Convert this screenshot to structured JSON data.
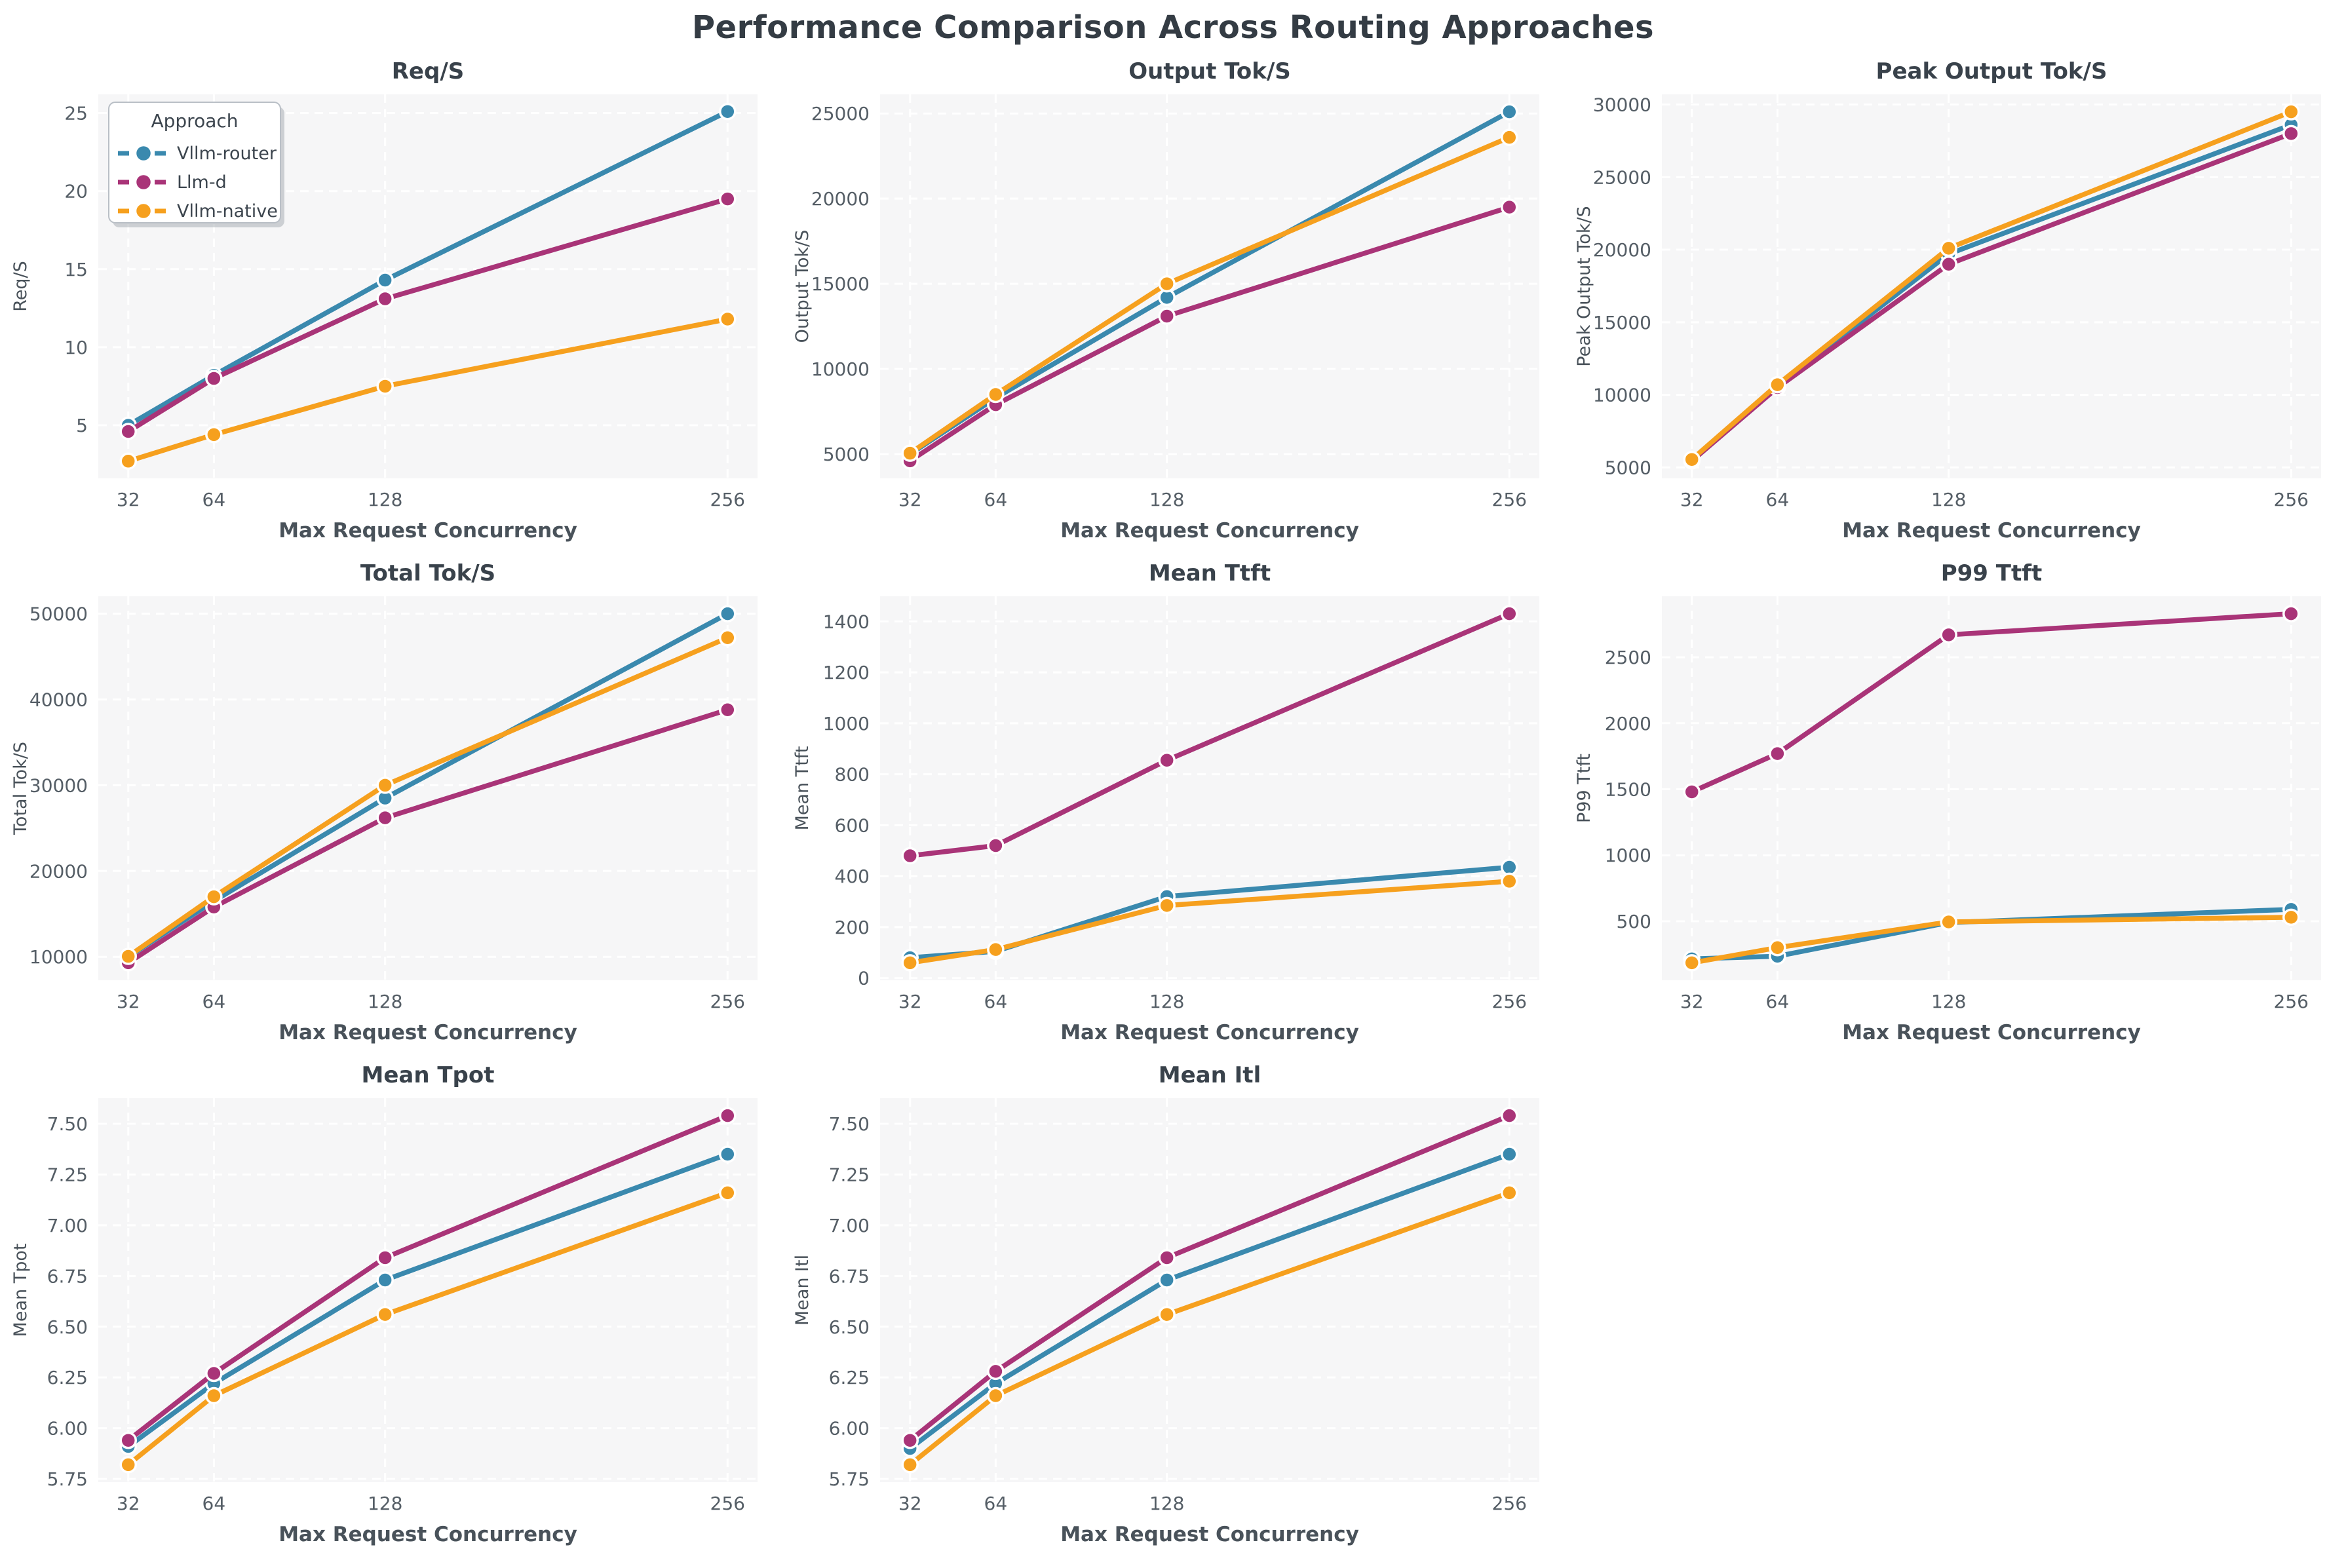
{
  "title": "Performance Comparison Across Routing Approaches",
  "legend": {
    "title": "Approach",
    "entries": [
      "Vllm-router",
      "Llm-d",
      "Vllm-native"
    ],
    "position": "upper-left",
    "shown_on_chart": "Req/S"
  },
  "colors": {
    "Vllm-router": "#3a89ae",
    "Llm-d": "#a93478",
    "Vllm-native": "#f6a01e",
    "plot_background": "#f6f6f7",
    "grid_line": "#ffffff",
    "title_text": "#343c44",
    "subtitle_text": "#39424b",
    "tick_text": "#555e66",
    "axis_label_text": "#49525a",
    "marker_edge": "#ffffff"
  },
  "chart_data": [
    {
      "type": "line",
      "title": "Req/S",
      "xlabel": "Max Request Concurrency",
      "ylabel": "Req/S",
      "x": [
        32,
        64,
        128,
        256
      ],
      "xtick_labels": [
        "32",
        "64",
        "128",
        "256"
      ],
      "ytick_labels": [
        "5",
        "10",
        "15",
        "20",
        "25"
      ],
      "xlim": [
        20.8,
        267.2
      ],
      "ylim": [
        1.6,
        26.2
      ],
      "grid": true,
      "show_legend": true,
      "series": [
        {
          "name": "Vllm-router",
          "values": [
            5.0,
            8.2,
            14.3,
            25.1
          ]
        },
        {
          "name": "Llm-d",
          "values": [
            4.6,
            8.0,
            13.1,
            19.5
          ]
        },
        {
          "name": "Vllm-native",
          "values": [
            2.7,
            4.4,
            7.5,
            11.8
          ]
        }
      ]
    },
    {
      "type": "line",
      "title": "Output Tok/S",
      "xlabel": "Max Request Concurrency",
      "ylabel": "Output Tok/S",
      "x": [
        32,
        64,
        128,
        256
      ],
      "xtick_labels": [
        "32",
        "64",
        "128",
        "256"
      ],
      "ytick_labels": [
        "5000",
        "10000",
        "15000",
        "20000",
        "25000"
      ],
      "xlim": [
        20.8,
        267.2
      ],
      "ylim": [
        3575,
        26125
      ],
      "grid": true,
      "show_legend": false,
      "series": [
        {
          "name": "Vllm-router",
          "values": [
            5000,
            8300,
            14200,
            25100
          ]
        },
        {
          "name": "Llm-d",
          "values": [
            4600,
            7900,
            13100,
            19500
          ]
        },
        {
          "name": "Vllm-native",
          "values": [
            5050,
            8500,
            15000,
            23600
          ]
        }
      ]
    },
    {
      "type": "line",
      "title": "Peak Output Tok/S",
      "xlabel": "Max Request Concurrency",
      "ylabel": "Peak Output Tok/S",
      "x": [
        32,
        64,
        128,
        256
      ],
      "xtick_labels": [
        "32",
        "64",
        "128",
        "256"
      ],
      "ytick_labels": [
        "5000",
        "10000",
        "15000",
        "20000",
        "25000",
        "30000"
      ],
      "xlim": [
        20.8,
        267.2
      ],
      "ylim": [
        4250,
        30700
      ],
      "grid": true,
      "show_legend": false,
      "series": [
        {
          "name": "Vllm-router",
          "values": [
            5500,
            10600,
            19700,
            28600
          ]
        },
        {
          "name": "Llm-d",
          "values": [
            5450,
            10500,
            19000,
            28000
          ]
        },
        {
          "name": "Vllm-native",
          "values": [
            5550,
            10700,
            20100,
            29500
          ]
        }
      ]
    },
    {
      "type": "line",
      "title": "Total Tok/S",
      "xlabel": "Max Request Concurrency",
      "ylabel": "Total Tok/S",
      "x": [
        32,
        64,
        128,
        256
      ],
      "xtick_labels": [
        "32",
        "64",
        "128",
        "256"
      ],
      "ytick_labels": [
        "10000",
        "20000",
        "30000",
        "40000",
        "50000"
      ],
      "xlim": [
        20.8,
        267.2
      ],
      "ylim": [
        7265,
        52035
      ],
      "grid": true,
      "show_legend": false,
      "series": [
        {
          "name": "Vllm-router",
          "values": [
            10000,
            16500,
            28500,
            50000
          ]
        },
        {
          "name": "Llm-d",
          "values": [
            9300,
            15800,
            26200,
            38800
          ]
        },
        {
          "name": "Vllm-native",
          "values": [
            10050,
            17000,
            30000,
            47200
          ]
        }
      ]
    },
    {
      "type": "line",
      "title": "Mean Ttft",
      "xlabel": "Max Request Concurrency",
      "ylabel": "Mean Ttft",
      "x": [
        32,
        64,
        128,
        256
      ],
      "xtick_labels": [
        "32",
        "64",
        "128",
        "256"
      ],
      "ytick_labels": [
        "0",
        "200",
        "400",
        "600",
        "800",
        "1000",
        "1200",
        "1400"
      ],
      "xlim": [
        20.8,
        267.2
      ],
      "ylim": [
        -8.5,
        1498.5
      ],
      "grid": true,
      "show_legend": false,
      "series": [
        {
          "name": "Vllm-router",
          "values": [
            80,
            105,
            320,
            435
          ]
        },
        {
          "name": "Llm-d",
          "values": [
            480,
            520,
            855,
            1430
          ]
        },
        {
          "name": "Vllm-native",
          "values": [
            60,
            112,
            285,
            380
          ]
        }
      ]
    },
    {
      "type": "line",
      "title": "P99 Ttft",
      "xlabel": "Max Request Concurrency",
      "ylabel": "P99 Ttft",
      "x": [
        32,
        64,
        128,
        256
      ],
      "xtick_labels": [
        "32",
        "64",
        "128",
        "256"
      ],
      "ytick_labels": [
        "500",
        "1000",
        "1500",
        "2000",
        "2500"
      ],
      "xlim": [
        20.8,
        267.2
      ],
      "ylim": [
        53,
        2962
      ],
      "grid": true,
      "show_legend": false,
      "series": [
        {
          "name": "Vllm-router",
          "values": [
            215,
            235,
            490,
            590
          ]
        },
        {
          "name": "Llm-d",
          "values": [
            1480,
            1770,
            2670,
            2830
          ]
        },
        {
          "name": "Vllm-native",
          "values": [
            185,
            300,
            495,
            530
          ]
        }
      ]
    },
    {
      "type": "line",
      "title": "Mean Tpot",
      "xlabel": "Max Request Concurrency",
      "ylabel": "Mean Tpot",
      "x": [
        32,
        64,
        128,
        256
      ],
      "xtick_labels": [
        "32",
        "64",
        "128",
        "256"
      ],
      "ytick_labels": [
        "5.75",
        "6.00",
        "6.25",
        "6.50",
        "6.75",
        "7.00",
        "7.25",
        "7.50"
      ],
      "xlim": [
        20.8,
        267.2
      ],
      "ylim": [
        5.734,
        7.626
      ],
      "grid": true,
      "show_legend": false,
      "series": [
        {
          "name": "Vllm-router",
          "values": [
            5.91,
            6.22,
            6.73,
            7.35
          ]
        },
        {
          "name": "Llm-d",
          "values": [
            5.94,
            6.27,
            6.84,
            7.54
          ]
        },
        {
          "name": "Vllm-native",
          "values": [
            5.82,
            6.16,
            6.56,
            7.16
          ]
        }
      ]
    },
    {
      "type": "line",
      "title": "Mean Itl",
      "xlabel": "Max Request Concurrency",
      "ylabel": "Mean Itl",
      "x": [
        32,
        64,
        128,
        256
      ],
      "xtick_labels": [
        "32",
        "64",
        "128",
        "256"
      ],
      "ytick_labels": [
        "5.75",
        "6.00",
        "6.25",
        "6.50",
        "6.75",
        "7.00",
        "7.25",
        "7.50"
      ],
      "xlim": [
        20.8,
        267.2
      ],
      "ylim": [
        5.734,
        7.626
      ],
      "grid": true,
      "show_legend": false,
      "series": [
        {
          "name": "Vllm-router",
          "values": [
            5.9,
            6.22,
            6.73,
            7.35
          ]
        },
        {
          "name": "Llm-d",
          "values": [
            5.94,
            6.28,
            6.84,
            7.54
          ]
        },
        {
          "name": "Vllm-native",
          "values": [
            5.82,
            6.16,
            6.56,
            7.16
          ]
        }
      ]
    }
  ]
}
